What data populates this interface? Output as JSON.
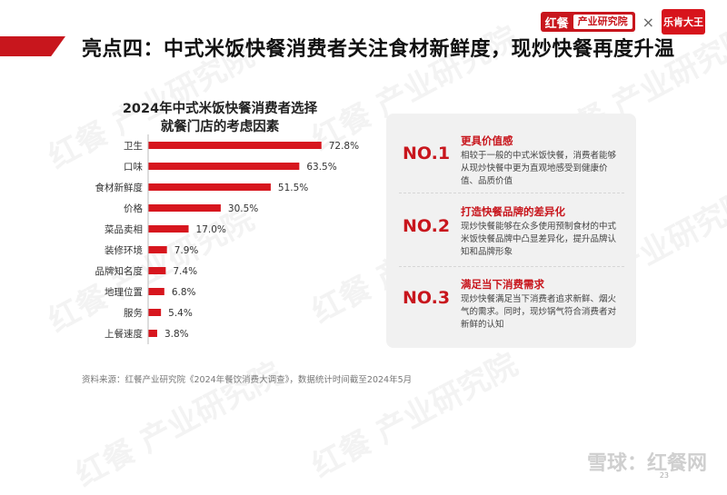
{
  "header": {
    "title": "亮点四：中式米饭快餐消费者关注食材新鲜度，现炒快餐再度升温"
  },
  "brand": {
    "hongcan_mark": "红餐",
    "hongcan_text": "产业研究院",
    "partner_name": "乐肯大王"
  },
  "chart_data": {
    "type": "bar",
    "orientation": "horizontal",
    "title": "2024年中式米饭快餐消费者选择就餐门店的考虑因素",
    "title_lines": [
      "2024年中式米饭快餐消费者选择",
      "就餐门店的考虑因素"
    ],
    "categories": [
      "卫生",
      "口味",
      "食材新鲜度",
      "价格",
      "菜品卖相",
      "装修环境",
      "品牌知名度",
      "地理位置",
      "服务",
      "上餐速度"
    ],
    "values": [
      72.8,
      63.5,
      51.5,
      30.5,
      17.0,
      7.9,
      7.4,
      6.8,
      5.4,
      3.8
    ],
    "value_labels": [
      "72.8%",
      "63.5%",
      "51.5%",
      "30.5%",
      "17.0%",
      "7.9%",
      "7.4%",
      "6.8%",
      "5.4%",
      "3.8%"
    ],
    "xlim": [
      0,
      100
    ],
    "bar_color": "#d7161e",
    "grid": false
  },
  "panel": {
    "items": [
      {
        "no": "NO.1",
        "heading": "更具价值感",
        "text": "相较于一般的中式米饭快餐，消费者能够从现炒快餐中更为直观地感受到健康价值、品质价值"
      },
      {
        "no": "NO.2",
        "heading": "打造快餐品牌的差异化",
        "text": "现炒快餐能够在众多使用预制食材的中式米饭快餐品牌中凸显差异化，提升品牌认知和品牌形象"
      },
      {
        "no": "NO.3",
        "heading": "满足当下消费需求",
        "text": "现炒快餐满足当下消费者追求新鲜、烟火气的需求。同时，现炒锅气符合消费者对新鲜的认知"
      }
    ]
  },
  "source": "资料来源：红餐产业研究院《2024年餐饮消费大调查》，数据统计时间截至2024年5月",
  "watermark": {
    "text": "红餐 产业研究院"
  },
  "footer_watermark": "雪球：红餐网",
  "page_number": "23",
  "colors": {
    "accent": "#c8161d",
    "panel_bg": "#f1f1f1"
  }
}
